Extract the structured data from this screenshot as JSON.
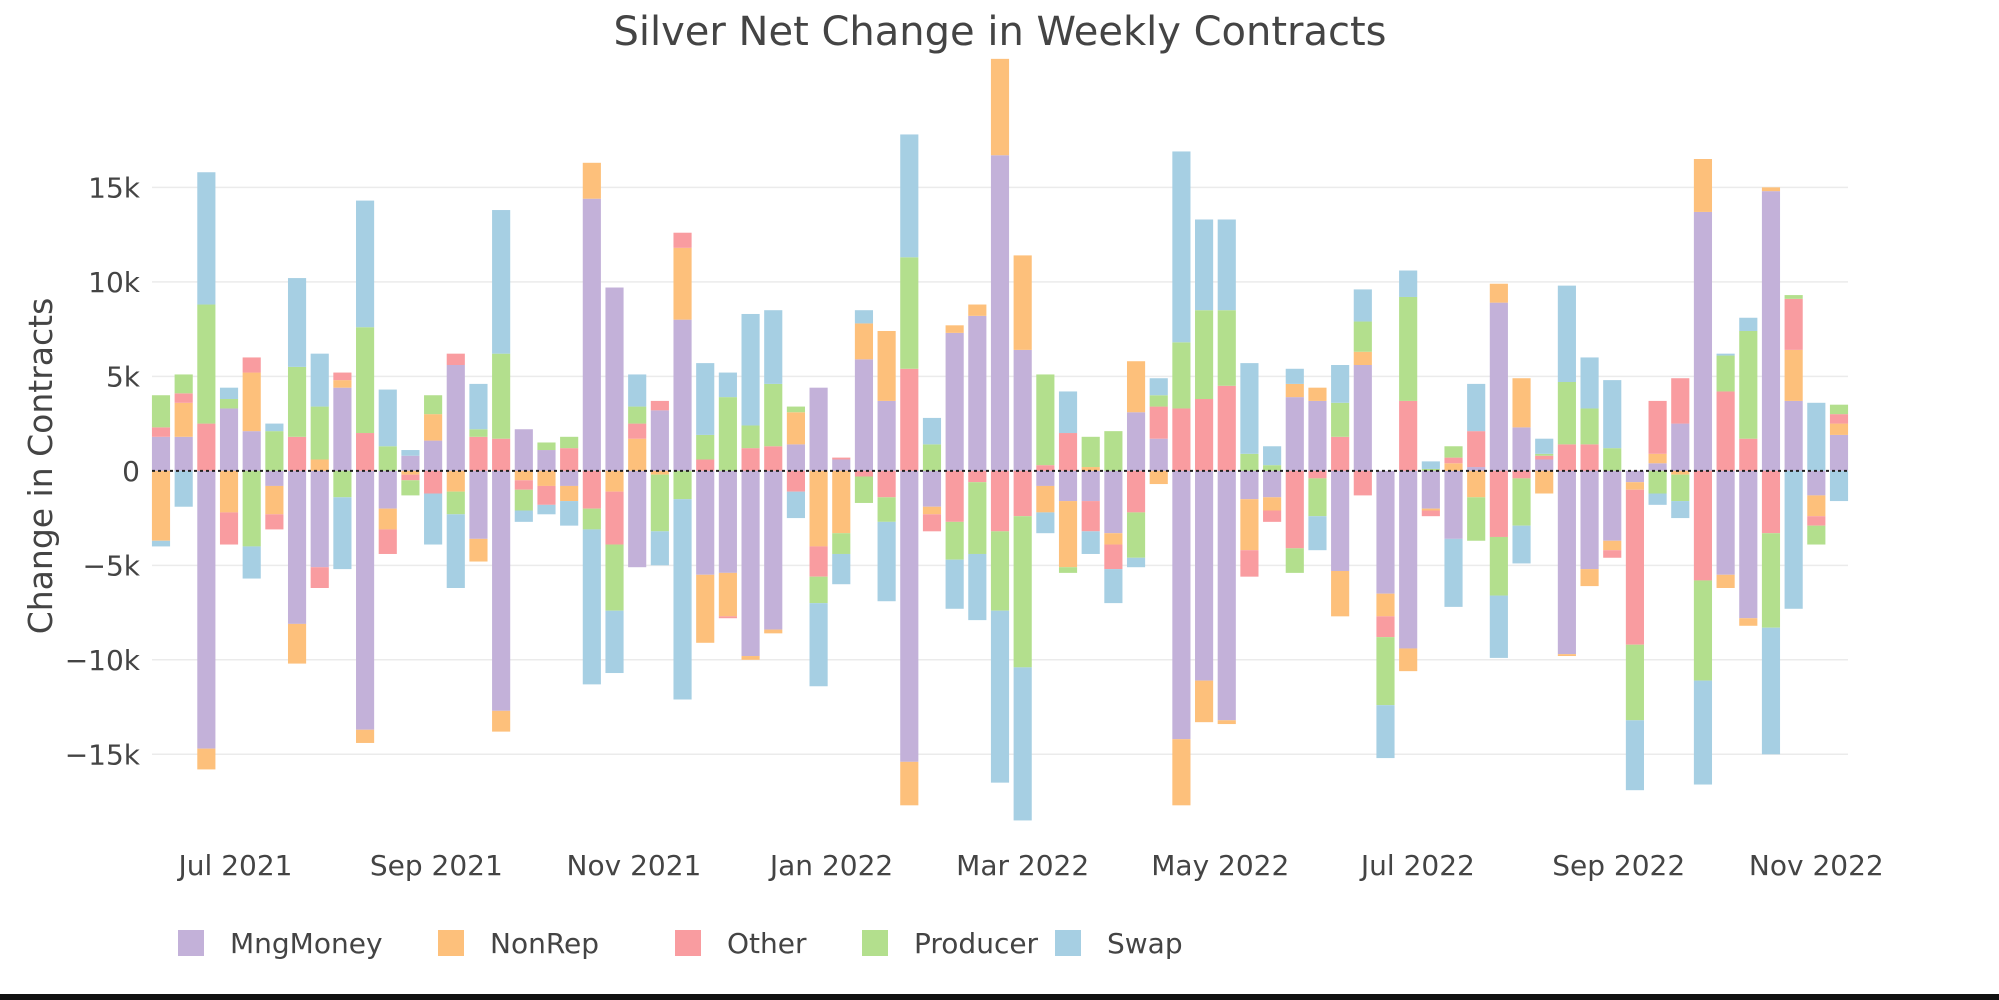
{
  "chart_data": {
    "type": "bar",
    "stacked": "relative",
    "title": "Silver Net Change in Weekly Contracts",
    "xlabel": "",
    "ylabel": "Change in Contracts",
    "ylim": [
      -19800,
      18300
    ],
    "yticks": [
      15000,
      10000,
      5000,
      0,
      -5000,
      -10000,
      -15000
    ],
    "ytick_labels": [
      "15k",
      "10k",
      "5k",
      "0",
      "−5k",
      "−10k",
      "−15k"
    ],
    "x_start": "2021-06-08",
    "x_step_days": 7,
    "xticks": [
      "2021-07-01",
      "2021-09-01",
      "2021-11-01",
      "2022-01-01",
      "2022-03-01",
      "2022-05-01",
      "2022-07-01",
      "2022-09-01",
      "2022-11-01"
    ],
    "xtick_labels": [
      "Jul 2021",
      "Sep 2021",
      "Nov 2021",
      "Jan 2022",
      "Mar 2022",
      "May 2022",
      "Jul 2022",
      "Sep 2022",
      "Nov 2022"
    ],
    "grid": true,
    "legend": "bottom-left",
    "series": [
      {
        "name": "MngMoney",
        "color": "#c3b1d9",
        "values": [
          1800,
          1800,
          -14700,
          3300,
          2100,
          -800,
          -8100,
          -5100,
          4400,
          -13700,
          -2000,
          800,
          1600,
          5600,
          -3600,
          -12700,
          2200,
          1100,
          -800,
          14400,
          9700,
          -5100,
          3200,
          8000,
          -5500,
          -5400,
          -9800,
          -8400,
          1400,
          4400,
          600,
          5900,
          3700,
          -15400,
          -1900,
          7300,
          8200,
          16700,
          6400,
          -800,
          -1600,
          -1600,
          -3300,
          3100,
          1700,
          -14200,
          -11100,
          -13200,
          -1500,
          -1400,
          3900,
          3700,
          -5300,
          5600,
          -6500,
          -9400,
          -2000,
          -3600,
          200,
          8900,
          2300,
          600,
          -9700,
          -5200,
          -3700,
          -600,
          400,
          2500,
          13700,
          -5500,
          -7800,
          14800,
          3700,
          -1300,
          1900
        ]
      },
      {
        "name": "NonRep",
        "color": "#fdc07b",
        "values": [
          -3700,
          1800,
          -1100,
          -2200,
          3100,
          -1500,
          -2100,
          600,
          400,
          -700,
          -1100,
          -200,
          1400,
          -1100,
          -1200,
          -1100,
          -500,
          -800,
          -800,
          1900,
          -1100,
          1700,
          -200,
          3800,
          -3600,
          -2300,
          -200,
          -200,
          1700,
          -4000,
          -3300,
          1900,
          3700,
          -2300,
          -400,
          400,
          600,
          5100,
          5000,
          -1400,
          -3500,
          200,
          -600,
          2700,
          -700,
          -3500,
          -2200,
          -200,
          -2700,
          -700,
          700,
          700,
          -2400,
          700,
          -1200,
          -1200,
          -100,
          400,
          -1400,
          1000,
          2600,
          -1200,
          -100,
          -900,
          -500,
          -400,
          500,
          -200,
          2800,
          -700,
          -400,
          200,
          2700,
          -1100,
          600
        ]
      },
      {
        "name": "Other",
        "color": "#f99ca0",
        "values": [
          500,
          500,
          2500,
          -1700,
          800,
          -800,
          1800,
          -1100,
          400,
          2000,
          -1300,
          -300,
          -1200,
          600,
          1800,
          1700,
          -500,
          -1000,
          1200,
          -2000,
          -2800,
          800,
          500,
          800,
          600,
          -100,
          1200,
          1300,
          -1100,
          -1600,
          100,
          -300,
          -1400,
          5400,
          -900,
          -2700,
          -600,
          -3200,
          -2400,
          300,
          2000,
          -1600,
          -1300,
          -2200,
          1700,
          3300,
          3800,
          4500,
          -1400,
          -600,
          -4100,
          -400,
          1800,
          -1300,
          -1100,
          3700,
          -300,
          300,
          1900,
          -3500,
          -400,
          200,
          1400,
          1400,
          -400,
          -8200,
          2800,
          2400,
          -5800,
          4200,
          1700,
          -3300,
          2700,
          -500,
          500
        ]
      },
      {
        "name": "Producer",
        "color": "#b3df8d",
        "values": [
          1700,
          1000,
          6300,
          500,
          -4000,
          2100,
          3700,
          2800,
          -1400,
          5600,
          1300,
          -800,
          1000,
          -1200,
          400,
          4500,
          -1100,
          400,
          600,
          -1100,
          -3500,
          900,
          -3000,
          -1500,
          1300,
          3900,
          1200,
          3300,
          300,
          -1400,
          -1100,
          -1400,
          -1300,
          5900,
          1400,
          -2000,
          -3800,
          -4200,
          -8000,
          4800,
          -300,
          1600,
          2100,
          -2400,
          600,
          3500,
          4700,
          4000,
          900,
          300,
          -1300,
          -2000,
          1800,
          1600,
          -3600,
          5500,
          100,
          600,
          -2300,
          -3100,
          -2500,
          100,
          3300,
          1900,
          1200,
          -4000,
          -1200,
          -1400,
          -5300,
          1900,
          5700,
          -5000,
          200,
          -1000,
          500
        ]
      },
      {
        "name": "Swap",
        "color": "#a6cfe3",
        "values": [
          -300,
          -1900,
          7000,
          600,
          -1700,
          400,
          4700,
          2800,
          -3800,
          6700,
          3000,
          300,
          -2700,
          -3900,
          2400,
          7600,
          -600,
          -500,
          -1300,
          -8200,
          -3300,
          1700,
          -1800,
          -10600,
          3800,
          1300,
          5900,
          3900,
          -1400,
          -4400,
          -1600,
          700,
          -4200,
          6500,
          1400,
          -2600,
          -3500,
          -9100,
          -8100,
          -1100,
          2200,
          -1200,
          -1800,
          -500,
          900,
          10100,
          4800,
          4800,
          4800,
          1000,
          800,
          -1800,
          2000,
          1700,
          -2800,
          1400,
          400,
          -3600,
          2500,
          -3300,
          -2000,
          800,
          5100,
          2700,
          3600,
          -3700,
          -600,
          -900,
          -5500,
          100,
          700,
          -6700,
          -7300,
          3600,
          -1600
        ]
      }
    ]
  }
}
